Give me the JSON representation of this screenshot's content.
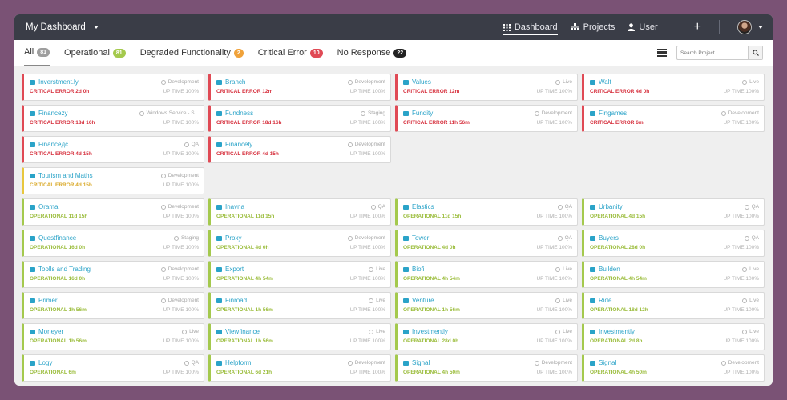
{
  "topbar": {
    "brand": "My Dashboard",
    "nav": [
      {
        "label": "Dashboard",
        "icon": "grid-icon",
        "active": true
      },
      {
        "label": "Projects",
        "icon": "sitemap-icon",
        "active": false
      },
      {
        "label": "User",
        "icon": "user-icon",
        "active": false
      }
    ],
    "plus": "+"
  },
  "filters": {
    "tabs": [
      {
        "label": "All",
        "count": "81",
        "color": "#9e9e9e"
      },
      {
        "label": "Operational",
        "count": "81",
        "color": "#a4c94d"
      },
      {
        "label": "Degraded Functionality",
        "count": "2",
        "color": "#f0a23a"
      },
      {
        "label": "Critical Error",
        "count": "10",
        "color": "#e04a55"
      },
      {
        "label": "No Response",
        "count": "22",
        "color": "#222222"
      }
    ],
    "search_placeholder": "Search Project..."
  },
  "uptime_label": "UP TIME 100%",
  "rows": [
    [
      {
        "name": "Inverstment.ly",
        "env": "Development",
        "status": "CRITICAL ERROR 2d 0h",
        "level": "red"
      },
      {
        "name": "Branch",
        "env": "Development",
        "status": "CRITICAL ERROR 12m",
        "level": "red"
      },
      {
        "name": "Values",
        "env": "Live",
        "status": "CRITICAL ERROR 12m",
        "level": "red"
      },
      {
        "name": "Walt",
        "env": "Live",
        "status": "CRITICAL ERROR 4d 0h",
        "level": "red"
      }
    ],
    [
      {
        "name": "Financezy",
        "env": "Windows Service - S...",
        "status": "CRITICAL ERROR 18d 16h",
        "level": "red"
      },
      {
        "name": "Fundness",
        "env": "Staging",
        "status": "CRITICAL ERROR 18d 16h",
        "level": "red"
      },
      {
        "name": "Fundity",
        "env": "Development",
        "status": "CRITICAL ERROR 11h 56m",
        "level": "red"
      },
      {
        "name": "Fingames",
        "env": "Development",
        "status": "CRITICAL ERROR 6m",
        "level": "red"
      }
    ],
    [
      {
        "name": "Financeдc",
        "env": "QA",
        "status": "CRITICAL ERROR 4d 15h",
        "level": "red"
      },
      {
        "name": "Financely",
        "env": "Development",
        "status": "CRITICAL ERROR 4d 15h",
        "level": "red"
      }
    ],
    [
      {
        "name": "Tourism and Maths",
        "env": "Development",
        "status": "CRITICAL ERROR 4d 15h",
        "level": "yellow"
      }
    ],
    [
      {
        "name": "Orama",
        "env": "Development",
        "status": "OPERATIONAL 11d 15h",
        "level": "green"
      },
      {
        "name": "Inavna",
        "env": "QA",
        "status": "OPERATIONAL 11d 15h",
        "level": "green"
      },
      {
        "name": "Elastics",
        "env": "QA",
        "status": "OPERATIONAL 11d 15h",
        "level": "green"
      },
      {
        "name": "Urbanity",
        "env": "QA",
        "status": "OPERATIONAL 4d 15h",
        "level": "green"
      }
    ],
    [
      {
        "name": "Questfinance",
        "env": "Staging",
        "status": "OPERATIONAL 16d 0h",
        "level": "green"
      },
      {
        "name": "Proxy",
        "env": "Development",
        "status": "OPERATIONAL 4d 0h",
        "level": "green"
      },
      {
        "name": "Tower",
        "env": "QA",
        "status": "OPERATIONAL 4d 0h",
        "level": "green"
      },
      {
        "name": "Buyers",
        "env": "QA",
        "status": "OPERATIONAL 28d 0h",
        "level": "green"
      }
    ],
    [
      {
        "name": "Toolls and Trading",
        "env": "Development",
        "status": "OPERATIONAL 16d 0h",
        "level": "green"
      },
      {
        "name": "Export",
        "env": "Live",
        "status": "OPERATIONAL 4h 54m",
        "level": "green"
      },
      {
        "name": "Biofi",
        "env": "Live",
        "status": "OPERATIONAL 4h 54m",
        "level": "green"
      },
      {
        "name": "Builden",
        "env": "Live",
        "status": "OPERATIONAL 4h 54m",
        "level": "green"
      }
    ],
    [
      {
        "name": "Primer",
        "env": "Development",
        "status": "OPERATIONAL 1h 56m",
        "level": "green"
      },
      {
        "name": "Finroad",
        "env": "Live",
        "status": "OPERATIONAL 1h 56m",
        "level": "green"
      },
      {
        "name": "Venture",
        "env": "Live",
        "status": "OPERATIONAL 1h 56m",
        "level": "green"
      },
      {
        "name": "Ride",
        "env": "Live",
        "status": "OPERATIONAL 18d 12h",
        "level": "green"
      }
    ],
    [
      {
        "name": "Moneyer",
        "env": "Live",
        "status": "OPERATIONAL 1h 56m",
        "level": "green"
      },
      {
        "name": "Viewfinance",
        "env": "Live",
        "status": "OPERATIONAL 1h 56m",
        "level": "green"
      },
      {
        "name": "Investmently",
        "env": "Live",
        "status": "OPERATIONAL 28d 0h",
        "level": "green"
      },
      {
        "name": "Investmently",
        "env": "Live",
        "status": "OPERATIONAL 2d 8h",
        "level": "green"
      }
    ],
    [
      {
        "name": "Logy",
        "env": "QA",
        "status": "OPERATIONAL 6m",
        "level": "green"
      },
      {
        "name": "Helpform",
        "env": "Development",
        "status": "OPERATIONAL 6d 21h",
        "level": "green"
      },
      {
        "name": "Signal",
        "env": "Development",
        "status": "OPERATIONAL 4h 50m",
        "level": "green"
      },
      {
        "name": "Signal",
        "env": "Development",
        "status": "OPERATIONAL 4h 50m",
        "level": "green"
      }
    ]
  ]
}
